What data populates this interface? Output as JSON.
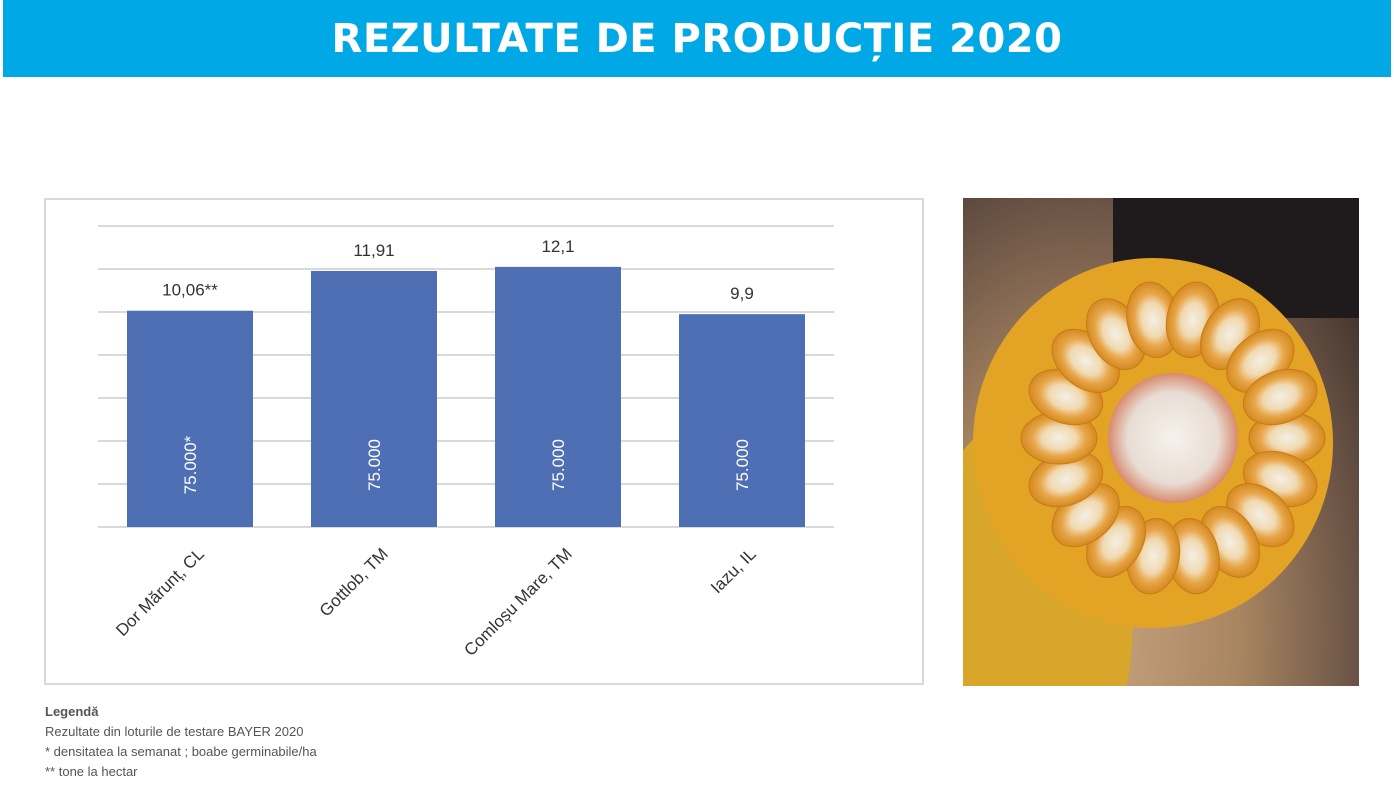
{
  "header": {
    "title": "REZULTATE DE PRODUCȚIE 2020",
    "color": "#00a8e6"
  },
  "chart_data": {
    "type": "bar",
    "categories": [
      "Dor Mărunț, CL",
      "Gottlob, TM",
      "Comloșu Mare, TM",
      "Iazu, IL"
    ],
    "values": [
      10.06,
      11.91,
      12.1,
      9.9
    ],
    "value_labels": [
      "10,06**",
      "11,91",
      "12,1",
      "9,9"
    ],
    "inner_labels": [
      "75.000*",
      "75.000",
      "75.000",
      "75.000"
    ],
    "ylim": [
      0,
      14
    ],
    "grid": true,
    "bar_color": "#4f6fb5",
    "title": "",
    "xlabel": "",
    "ylabel": ""
  },
  "photo": {
    "subject": "corn-cob-cross-section"
  },
  "legend": {
    "title": "Legendă",
    "lines": [
      "Rezultate din loturile de testare BAYER 2020",
      "* densitatea la semanat ; boabe germinabile/ha",
      "** tone la hectar"
    ]
  }
}
